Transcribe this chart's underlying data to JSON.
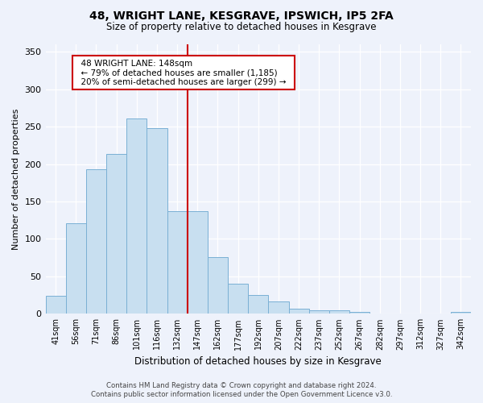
{
  "title": "48, WRIGHT LANE, KESGRAVE, IPSWICH, IP5 2FA",
  "subtitle": "Size of property relative to detached houses in Kesgrave",
  "xlabel": "Distribution of detached houses by size in Kesgrave",
  "ylabel": "Number of detached properties",
  "bar_labels": [
    "41sqm",
    "56sqm",
    "71sqm",
    "86sqm",
    "101sqm",
    "116sqm",
    "132sqm",
    "147sqm",
    "162sqm",
    "177sqm",
    "192sqm",
    "207sqm",
    "222sqm",
    "237sqm",
    "252sqm",
    "267sqm",
    "282sqm",
    "297sqm",
    "312sqm",
    "327sqm",
    "342sqm"
  ],
  "bar_values": [
    24,
    121,
    193,
    214,
    261,
    248,
    137,
    137,
    76,
    40,
    25,
    16,
    7,
    5,
    5,
    2,
    0,
    0,
    0,
    0,
    2
  ],
  "bar_color": "#c8dff0",
  "bar_edge_color": "#7ab0d4",
  "highlight_bar_index": 7,
  "highlight_color": "#cc0000",
  "ylim": [
    0,
    360
  ],
  "yticks": [
    0,
    50,
    100,
    150,
    200,
    250,
    300,
    350
  ],
  "annotation_title": "48 WRIGHT LANE: 148sqm",
  "annotation_line1": "← 79% of detached houses are smaller (1,185)",
  "annotation_line2": "20% of semi-detached houses are larger (299) →",
  "footer_line1": "Contains HM Land Registry data © Crown copyright and database right 2024.",
  "footer_line2": "Contains public sector information licensed under the Open Government Licence v3.0.",
  "bg_color": "#eef2fb"
}
